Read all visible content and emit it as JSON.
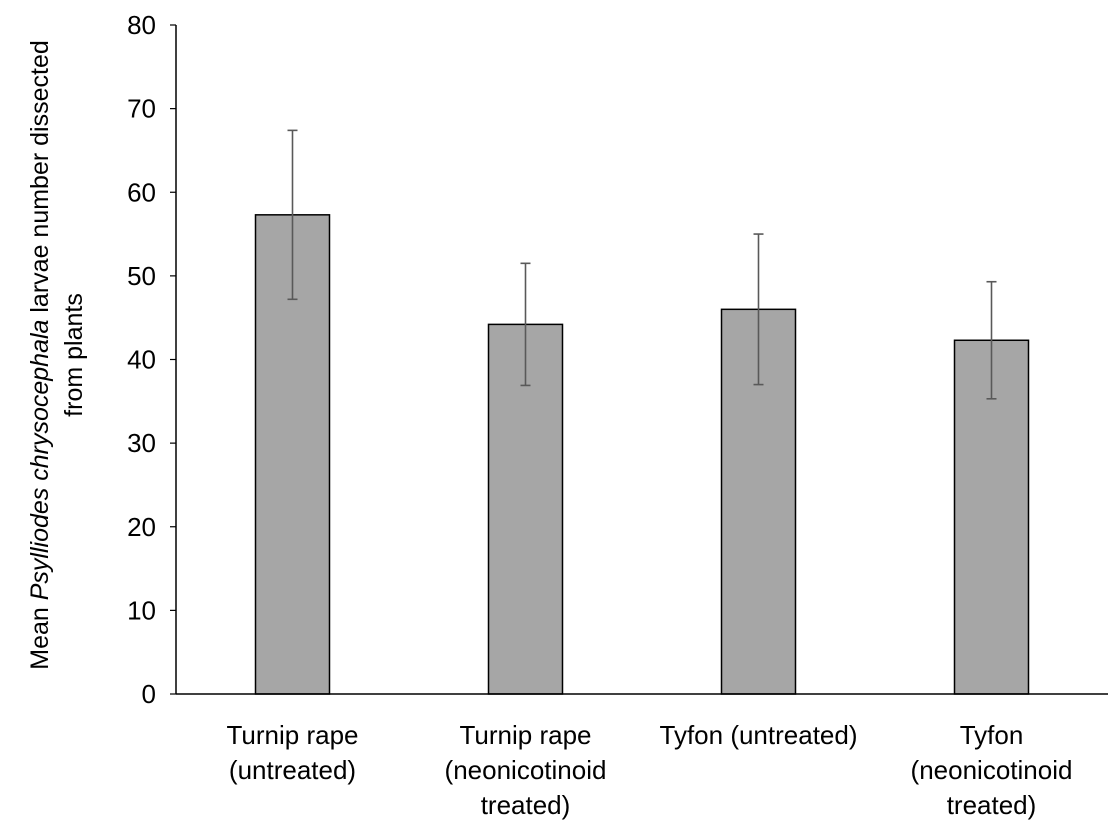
{
  "chart_data": {
    "type": "bar",
    "categories": [
      [
        "Turnip rape",
        "(untreated)"
      ],
      [
        "Turnip rape",
        "(neonicotinoid",
        "treated)"
      ],
      [
        "Tyfon (untreated)"
      ],
      [
        "Tyfon",
        "(neonicotinoid",
        "treated)"
      ]
    ],
    "values": [
      57.3,
      44.2,
      46.0,
      42.3
    ],
    "error": [
      10.1,
      7.3,
      9.0,
      7.0
    ],
    "ylim": [
      0,
      80
    ],
    "yticks": [
      0,
      10,
      20,
      30,
      40,
      50,
      60,
      70,
      80
    ],
    "title": "",
    "xlabel": "",
    "ylabel": {
      "line1_prefix": "Mean ",
      "line1_italic": "Psylliodes chrysocephala",
      "line1_suffix": " larvae number dissected",
      "line2": "from plants"
    },
    "grid": false,
    "legend": "none",
    "colors": {
      "bar_fill": "#a6a6a6",
      "bar_stroke": "#000000",
      "error_bar": "#595959",
      "axis": "#000000"
    }
  }
}
